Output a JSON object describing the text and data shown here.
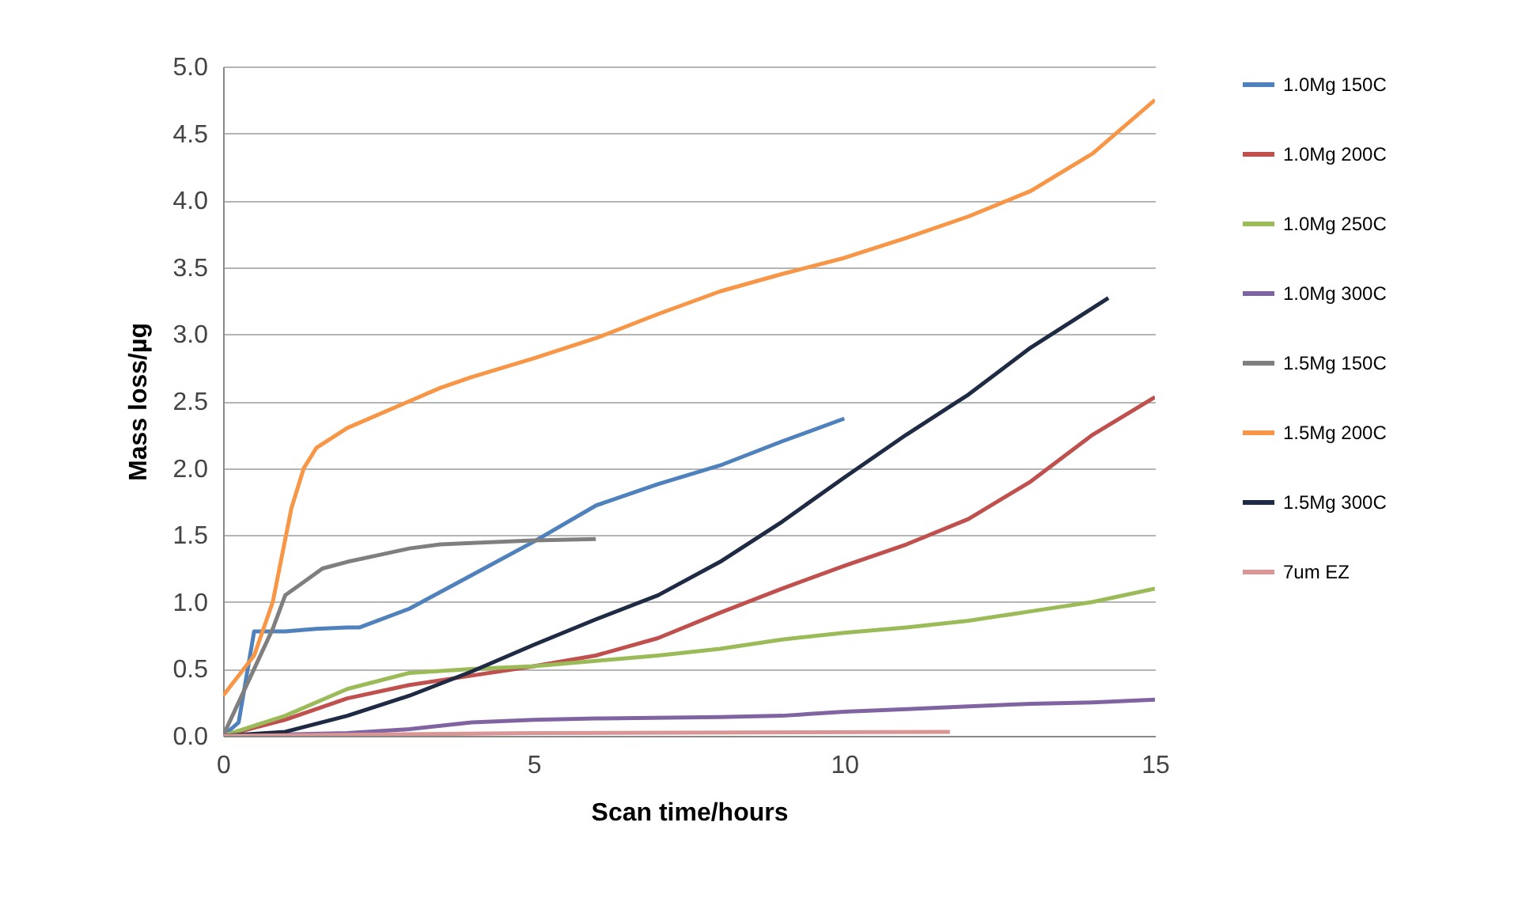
{
  "chart_data": {
    "type": "line",
    "xlabel": "Scan time/hours",
    "ylabel": "Mass loss/µg",
    "xlim": [
      0,
      15
    ],
    "xticks": [
      0,
      5,
      10,
      15
    ],
    "ylim": [
      0,
      5
    ],
    "yticks": [
      {
        "value": 0,
        "label": "0.0"
      },
      {
        "value": 0.5,
        "label": "0.5"
      },
      {
        "value": 1,
        "label": "1.0"
      },
      {
        "value": 1.5,
        "label": "1.5"
      },
      {
        "value": 2,
        "label": "2.0"
      },
      {
        "value": 2.5,
        "label": "2.5"
      },
      {
        "value": 3,
        "label": "3.0"
      },
      {
        "value": 3.5,
        "label": "3.5"
      },
      {
        "value": 4,
        "label": "4.0"
      },
      {
        "value": 4.5,
        "label": "4.5"
      },
      {
        "value": 5,
        "label": "5.0"
      }
    ],
    "grid": "y",
    "legend": "right",
    "marker": "none",
    "line_style": "solid",
    "series": [
      {
        "name": "1.0Mg 150C",
        "color": "#4f81bd",
        "x": [
          0,
          0.25,
          0.5,
          1,
          1.5,
          2,
          2.2,
          3,
          4,
          5,
          6,
          7,
          8,
          9,
          10
        ],
        "values": [
          0,
          0.1,
          0.78,
          0.78,
          0.8,
          0.81,
          0.81,
          0.95,
          1.2,
          1.45,
          1.72,
          1.88,
          2.02,
          2.2,
          2.37
        ]
      },
      {
        "name": "1.0Mg 200C",
        "color": "#c0504d",
        "x": [
          0,
          1,
          2,
          3,
          4,
          5,
          6,
          7,
          8,
          9,
          10,
          11,
          12,
          13,
          14,
          15
        ],
        "values": [
          0,
          0.12,
          0.28,
          0.38,
          0.45,
          0.52,
          0.6,
          0.73,
          0.92,
          1.1,
          1.27,
          1.43,
          1.62,
          1.9,
          2.25,
          2.53
        ]
      },
      {
        "name": "1.0Mg 250C",
        "color": "#9bbb59",
        "x": [
          0,
          1,
          2,
          3,
          4,
          5,
          6,
          7,
          8,
          9,
          10,
          11,
          12,
          13,
          14,
          15
        ],
        "values": [
          0,
          0.15,
          0.35,
          0.47,
          0.5,
          0.52,
          0.56,
          0.6,
          0.65,
          0.72,
          0.77,
          0.81,
          0.86,
          0.93,
          1.0,
          1.1
        ]
      },
      {
        "name": "1.0Mg 300C",
        "color": "#8064a2",
        "x": [
          0,
          2,
          3,
          4,
          5,
          6,
          8,
          9,
          10,
          11,
          12,
          13,
          14,
          15
        ],
        "values": [
          0,
          0.02,
          0.05,
          0.1,
          0.12,
          0.13,
          0.14,
          0.15,
          0.18,
          0.2,
          0.22,
          0.24,
          0.25,
          0.27
        ]
      },
      {
        "name": "1.5Mg 150C",
        "color": "#7f7f7f",
        "x": [
          0,
          0.5,
          0.8,
          1,
          1.3,
          1.6,
          2,
          2.5,
          3,
          3.5,
          4,
          5,
          6
        ],
        "values": [
          0,
          0.5,
          0.8,
          1.05,
          1.15,
          1.25,
          1.3,
          1.35,
          1.4,
          1.43,
          1.44,
          1.46,
          1.47
        ]
      },
      {
        "name": "1.5Mg 200C",
        "color": "#f79646",
        "x": [
          0,
          0.5,
          0.8,
          1.1,
          1.3,
          1.5,
          2,
          3,
          3.5,
          4,
          5,
          6,
          7,
          8,
          9,
          10,
          11,
          12,
          13,
          14,
          15
        ],
        "values": [
          0.3,
          0.6,
          1.0,
          1.7,
          2.0,
          2.15,
          2.3,
          2.5,
          2.6,
          2.68,
          2.82,
          2.97,
          3.15,
          3.32,
          3.45,
          3.57,
          3.72,
          3.88,
          4.07,
          4.35,
          4.75
        ]
      },
      {
        "name": "1.5Mg 300C",
        "color": "#1f2a44",
        "x": [
          0,
          1,
          2,
          3,
          4,
          5,
          6,
          7,
          8,
          9,
          10,
          11,
          12,
          13,
          14.25
        ],
        "values": [
          0,
          0.03,
          0.15,
          0.3,
          0.48,
          0.68,
          0.87,
          1.05,
          1.3,
          1.6,
          1.93,
          2.25,
          2.55,
          2.9,
          3.27
        ]
      },
      {
        "name": "7um EZ",
        "color": "#d99694",
        "x": [
          0,
          5,
          11.7
        ],
        "values": [
          0,
          0.02,
          0.03
        ]
      }
    ]
  }
}
